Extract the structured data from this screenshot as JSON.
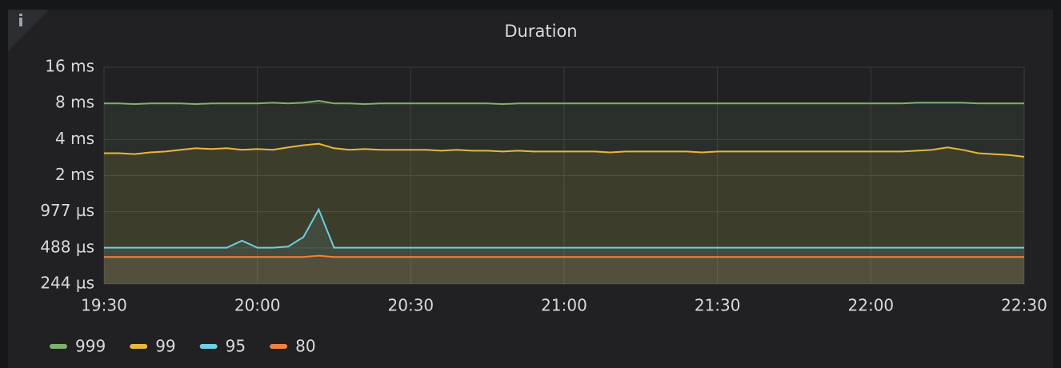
{
  "chart_data": {
    "type": "line",
    "title": "Duration",
    "log_scale": true,
    "log_base": 2,
    "grid": true,
    "fill": true,
    "legend": "bottom",
    "xlim": [
      "19:30",
      "22:30"
    ],
    "xticks": [
      "19:30",
      "20:00",
      "20:30",
      "21:00",
      "21:30",
      "22:00",
      "22:30"
    ],
    "ylim": [
      0.244140625,
      15.625
    ],
    "yticks": [
      {
        "value": 0.244140625,
        "label": "244 µs"
      },
      {
        "value": 0.48828125,
        "label": "488 µs"
      },
      {
        "value": 0.9765625,
        "label": "977 µs"
      },
      {
        "value": 1.953125,
        "label": "2 ms"
      },
      {
        "value": 3.90625,
        "label": "4 ms"
      },
      {
        "value": 7.8125,
        "label": "8 ms"
      },
      {
        "value": 15.625,
        "label": "16 ms"
      }
    ],
    "x": [
      "19:30",
      "19:33",
      "19:36",
      "19:39",
      "19:42",
      "19:45",
      "19:48",
      "19:51",
      "19:54",
      "19:57",
      "20:00",
      "20:03",
      "20:06",
      "20:09",
      "20:12",
      "20:15",
      "20:18",
      "20:21",
      "20:24",
      "20:27",
      "20:30",
      "20:33",
      "20:36",
      "20:39",
      "20:42",
      "20:45",
      "20:48",
      "20:51",
      "20:54",
      "20:57",
      "21:00",
      "21:03",
      "21:06",
      "21:09",
      "21:12",
      "21:15",
      "21:18",
      "21:21",
      "21:24",
      "21:27",
      "21:30",
      "21:33",
      "21:36",
      "21:39",
      "21:42",
      "21:45",
      "21:48",
      "21:51",
      "21:54",
      "21:57",
      "22:00",
      "22:03",
      "22:06",
      "22:09",
      "22:12",
      "22:15",
      "22:18",
      "22:21",
      "22:24",
      "22:27",
      "22:30"
    ],
    "series": [
      {
        "name": "999",
        "color": "#7eb26d",
        "values": [
          7.8,
          7.8,
          7.7,
          7.8,
          7.8,
          7.8,
          7.7,
          7.8,
          7.8,
          7.8,
          7.8,
          7.9,
          7.8,
          7.9,
          8.2,
          7.8,
          7.8,
          7.7,
          7.8,
          7.8,
          7.8,
          7.8,
          7.8,
          7.8,
          7.8,
          7.8,
          7.7,
          7.8,
          7.8,
          7.8,
          7.8,
          7.8,
          7.8,
          7.8,
          7.8,
          7.8,
          7.8,
          7.8,
          7.8,
          7.8,
          7.8,
          7.8,
          7.8,
          7.8,
          7.8,
          7.8,
          7.8,
          7.8,
          7.8,
          7.8,
          7.8,
          7.8,
          7.8,
          7.9,
          7.9,
          7.9,
          7.9,
          7.8,
          7.8,
          7.8,
          7.8
        ]
      },
      {
        "name": "99",
        "color": "#eab839",
        "values": [
          3.0,
          3.0,
          2.95,
          3.05,
          3.1,
          3.2,
          3.3,
          3.25,
          3.3,
          3.2,
          3.25,
          3.2,
          3.35,
          3.5,
          3.6,
          3.3,
          3.2,
          3.25,
          3.2,
          3.2,
          3.2,
          3.2,
          3.15,
          3.2,
          3.15,
          3.15,
          3.1,
          3.15,
          3.1,
          3.1,
          3.1,
          3.1,
          3.1,
          3.05,
          3.1,
          3.1,
          3.1,
          3.1,
          3.1,
          3.05,
          3.1,
          3.1,
          3.1,
          3.1,
          3.1,
          3.1,
          3.1,
          3.1,
          3.1,
          3.1,
          3.1,
          3.1,
          3.1,
          3.15,
          3.2,
          3.35,
          3.2,
          3.0,
          2.95,
          2.9,
          2.8
        ]
      },
      {
        "name": "95",
        "color": "#6ed0e0",
        "values": [
          0.49,
          0.49,
          0.49,
          0.49,
          0.49,
          0.49,
          0.49,
          0.49,
          0.49,
          0.56,
          0.49,
          0.49,
          0.5,
          0.6,
          1.02,
          0.49,
          0.49,
          0.49,
          0.49,
          0.49,
          0.49,
          0.49,
          0.49,
          0.49,
          0.49,
          0.49,
          0.49,
          0.49,
          0.49,
          0.49,
          0.49,
          0.49,
          0.49,
          0.49,
          0.49,
          0.49,
          0.49,
          0.49,
          0.49,
          0.49,
          0.49,
          0.49,
          0.49,
          0.49,
          0.49,
          0.49,
          0.49,
          0.49,
          0.49,
          0.49,
          0.49,
          0.49,
          0.49,
          0.49,
          0.49,
          0.49,
          0.49,
          0.49,
          0.49,
          0.49,
          0.49
        ]
      },
      {
        "name": "80",
        "color": "#ef843c",
        "values": [
          0.41,
          0.41,
          0.41,
          0.41,
          0.41,
          0.41,
          0.41,
          0.41,
          0.41,
          0.41,
          0.41,
          0.41,
          0.41,
          0.41,
          0.42,
          0.41,
          0.41,
          0.41,
          0.41,
          0.41,
          0.41,
          0.41,
          0.41,
          0.41,
          0.41,
          0.41,
          0.41,
          0.41,
          0.41,
          0.41,
          0.41,
          0.41,
          0.41,
          0.41,
          0.41,
          0.41,
          0.41,
          0.41,
          0.41,
          0.41,
          0.41,
          0.41,
          0.41,
          0.41,
          0.41,
          0.41,
          0.41,
          0.41,
          0.41,
          0.41,
          0.41,
          0.41,
          0.41,
          0.41,
          0.41,
          0.41,
          0.41,
          0.41,
          0.41,
          0.41,
          0.41
        ]
      }
    ]
  }
}
